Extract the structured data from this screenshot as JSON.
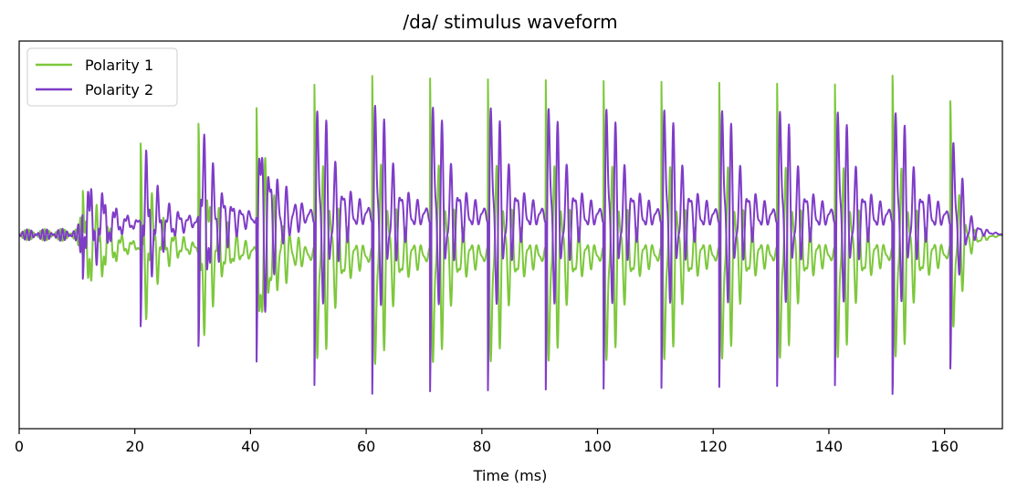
{
  "chart_data": {
    "type": "line",
    "title": "/da/ stimulus waveform",
    "xlabel": "Time (ms)",
    "ylabel": "",
    "xlim": [
      0,
      170
    ],
    "ylim": [
      -1.08,
      1.08
    ],
    "x_ticks": [
      "0",
      "20",
      "40",
      "60",
      "80",
      "100",
      "120",
      "140",
      "160"
    ],
    "x_tick_values": [
      0,
      20,
      40,
      60,
      80,
      100,
      120,
      140,
      160
    ],
    "y_ticks_visible": false,
    "grid": false,
    "legend_position": "top-left",
    "series": [
      {
        "name": "Polarity 1",
        "color": "#7dc83c",
        "polarity": 1
      },
      {
        "name": "Polarity 2",
        "color": "#7f3cc8",
        "polarity": -1
      }
    ],
    "waveform_model": {
      "f0_hz": 100,
      "burst_onset_ms": 11,
      "formant_transition_end_ms": 50,
      "steady_state_end_ms": 160,
      "offset_end_ms": 170,
      "envelope_points_ms": [
        0,
        10,
        11,
        15,
        25,
        35,
        45,
        55,
        65,
        160,
        165,
        170
      ],
      "envelope_amplitude": [
        0.05,
        0.06,
        0.25,
        0.55,
        0.5,
        0.72,
        0.8,
        0.98,
        0.95,
        0.9,
        0.2,
        0.02
      ]
    }
  }
}
